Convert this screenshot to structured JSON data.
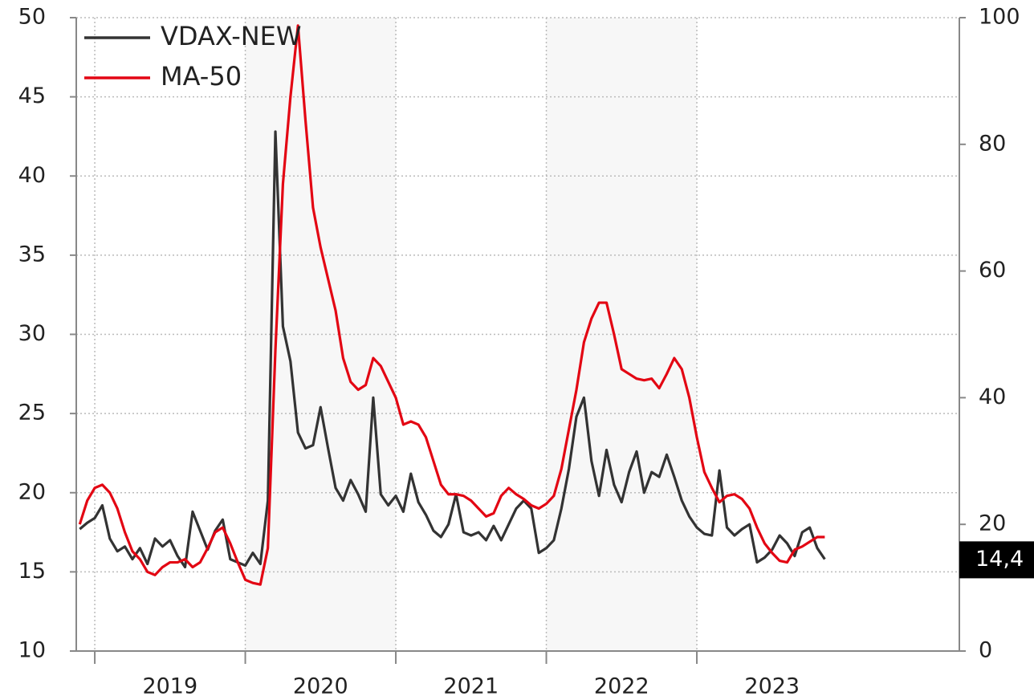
{
  "chart_data": {
    "type": "line",
    "x": [
      2018.9,
      2018.95,
      2019.0,
      2019.05,
      2019.1,
      2019.15,
      2019.2,
      2019.25,
      2019.3,
      2019.35,
      2019.4,
      2019.45,
      2019.5,
      2019.55,
      2019.6,
      2019.65,
      2019.7,
      2019.75,
      2019.8,
      2019.85,
      2019.9,
      2019.95,
      2020.0,
      2020.05,
      2020.1,
      2020.15,
      2020.2,
      2020.25,
      2020.3,
      2020.35,
      2020.4,
      2020.45,
      2020.5,
      2020.55,
      2020.6,
      2020.65,
      2020.7,
      2020.75,
      2020.8,
      2020.85,
      2020.9,
      2020.95,
      2021.0,
      2021.05,
      2021.1,
      2021.15,
      2021.2,
      2021.25,
      2021.3,
      2021.35,
      2021.4,
      2021.45,
      2021.5,
      2021.55,
      2021.6,
      2021.65,
      2021.7,
      2021.75,
      2021.8,
      2021.85,
      2021.9,
      2021.95,
      2022.0,
      2022.05,
      2022.1,
      2022.15,
      2022.2,
      2022.25,
      2022.3,
      2022.35,
      2022.4,
      2022.45,
      2022.5,
      2022.55,
      2022.6,
      2022.65,
      2022.7,
      2022.75,
      2022.8,
      2022.85,
      2022.9,
      2022.95,
      2023.0,
      2023.05,
      2023.1,
      2023.15,
      2023.2,
      2023.25,
      2023.3,
      2023.35,
      2023.4,
      2023.45,
      2023.5,
      2023.55,
      2023.6,
      2023.65,
      2023.7,
      2023.75,
      2023.8,
      2023.85
    ],
    "series": [
      {
        "name": "VDAX-NEW",
        "color": "#333333",
        "values": [
          17.7,
          18.1,
          18.4,
          19.2,
          17.1,
          16.3,
          16.6,
          15.8,
          16.5,
          15.5,
          17.1,
          16.6,
          17.0,
          16.0,
          15.3,
          18.8,
          17.6,
          16.4,
          17.6,
          18.3,
          15.8,
          15.6,
          15.4,
          16.2,
          15.5,
          19.5,
          42.8,
          30.5,
          28.3,
          23.8,
          22.8,
          23.0,
          25.4,
          22.8,
          20.3,
          19.5,
          20.8,
          19.9,
          18.8,
          26.0,
          19.9,
          19.2,
          19.8,
          18.8,
          21.2,
          19.4,
          18.6,
          17.6,
          17.2,
          18.0,
          19.9,
          17.5,
          17.3,
          17.5,
          17.0,
          17.9,
          17.0,
          18.0,
          19.0,
          19.5,
          19.0,
          16.2,
          16.5,
          17.0,
          19.0,
          21.5,
          24.8,
          26.0,
          22.0,
          19.8,
          22.7,
          20.5,
          19.4,
          21.3,
          22.6,
          20.0,
          21.3,
          21.0,
          22.4,
          21.0,
          19.5,
          18.5,
          17.8,
          17.4,
          17.3,
          21.4,
          17.8,
          17.3,
          17.7,
          18.0,
          15.6,
          15.9,
          16.4,
          17.3,
          16.8,
          16.0,
          17.5,
          17.8,
          16.5,
          15.8
        ]
      },
      {
        "name": "MA-50",
        "color": "#e30613",
        "values": [
          18.0,
          19.5,
          20.3,
          20.5,
          20.0,
          19.0,
          17.5,
          16.3,
          15.8,
          15.0,
          14.8,
          15.3,
          15.6,
          15.6,
          15.8,
          15.3,
          15.6,
          16.5,
          17.5,
          17.8,
          16.8,
          15.6,
          14.5,
          14.3,
          14.2,
          16.5,
          29.0,
          39.5,
          45.0,
          49.5,
          43.5,
          38.0,
          35.5,
          33.5,
          31.5,
          28.5,
          27.0,
          26.5,
          26.8,
          28.5,
          28.0,
          27.0,
          26.0,
          24.3,
          24.5,
          24.3,
          23.5,
          22.0,
          20.5,
          19.9,
          19.9,
          19.8,
          19.5,
          19.0,
          18.5,
          18.7,
          19.8,
          20.3,
          19.9,
          19.6,
          19.2,
          19.0,
          19.3,
          19.8,
          21.5,
          24.0,
          26.5,
          29.5,
          31.0,
          32.0,
          32.0,
          30.0,
          27.8,
          27.5,
          27.2,
          27.1,
          27.2,
          26.6,
          27.5,
          28.5,
          27.8,
          26.0,
          23.5,
          21.3,
          20.3,
          19.4,
          19.8,
          19.9,
          19.6,
          19.0,
          17.8,
          16.8,
          16.2,
          15.7,
          15.6,
          16.4,
          16.6,
          16.9,
          17.2,
          17.2
        ]
      }
    ],
    "xlim": [
      2018.877,
      2024.744
    ],
    "xticks": [
      2019,
      2020,
      2021,
      2022,
      2023
    ],
    "ylim": [
      10,
      50
    ],
    "yticks": [
      10,
      15,
      20,
      25,
      30,
      35,
      40,
      45,
      50
    ],
    "y2lim": [
      0,
      100
    ],
    "y2ticks": [
      0,
      20,
      40,
      60,
      80,
      100
    ],
    "grid": true,
    "legend": "upper left",
    "annotation": {
      "value": 14.4,
      "label": "14,4",
      "axis": "y2"
    }
  }
}
